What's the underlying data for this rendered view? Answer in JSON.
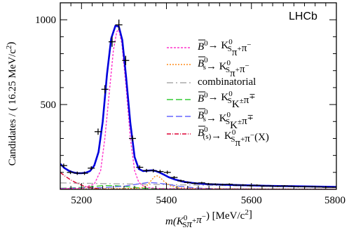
{
  "chart_data": {
    "type": "line",
    "experiment_label": "LHCb",
    "xlabel_parts": [
      "m(K",
      "0",
      "S",
      "π",
      "+",
      "π",
      "−",
      ") [MeV/c",
      "2",
      "]"
    ],
    "ylabel_parts": [
      "Candidates / ( 16.25 MeV/c",
      "2",
      ")"
    ],
    "xlim": [
      5150,
      5800
    ],
    "ylim": [
      0,
      1100
    ],
    "x_ticks": [
      5200,
      5400,
      5600,
      5800
    ],
    "x_tick_labels": [
      "5200",
      "5400",
      "5600",
      "5800"
    ],
    "y_ticks": [
      500,
      1000
    ],
    "y_tick_labels": [
      "500",
      "1000"
    ],
    "legend": [
      {
        "id": "b0_kspipi",
        "color": "#ff33cc",
        "dash": "3,2",
        "text_parts": [
          "B",
          "0",
          "→ K",
          "0",
          "S",
          "π",
          "+",
          "π",
          "−"
        ]
      },
      {
        "id": "bs_kspipi",
        "color": "#ff8c1a",
        "dash": "2,2",
        "text_parts": [
          "B",
          "0",
          "s",
          "→ K",
          "0",
          "S",
          "π",
          "+",
          "π",
          "−"
        ]
      },
      {
        "id": "combinatorial",
        "color": "#aaaaaa",
        "dash": "9,4,2,4",
        "text_parts": [
          "combinatorial"
        ]
      },
      {
        "id": "b0_kskpi",
        "color": "#33cc33",
        "dash": "9,4",
        "text_parts": [
          "B",
          "0",
          "→ K",
          "0",
          "S",
          "K",
          "±",
          "π",
          "∓"
        ]
      },
      {
        "id": "bs_kskpi",
        "color": "#6666ff",
        "dash": "9,4",
        "text_parts": [
          "B",
          "0",
          "s",
          "→ K",
          "0",
          "S",
          "K",
          "±",
          "π",
          "∓"
        ]
      },
      {
        "id": "partreco",
        "color": "#dd0033",
        "dash": "6,2,1,2",
        "text_parts": [
          "B",
          "0",
          "(s)",
          "→ K",
          "0",
          "S",
          "π",
          "+",
          "π",
          "−",
          "(X)"
        ]
      }
    ],
    "series": [
      {
        "id": "data",
        "kind": "points",
        "color": "#000000",
        "x": [
          5158,
          5174,
          5190,
          5207,
          5223,
          5239,
          5255,
          5272,
          5288,
          5304,
          5320,
          5337,
          5353,
          5369,
          5385,
          5402,
          5418,
          5434,
          5450,
          5467,
          5483,
          5499,
          5515,
          5532,
          5548,
          5564,
          5580,
          5597,
          5613,
          5629,
          5645,
          5662,
          5678,
          5694,
          5710,
          5727,
          5743,
          5759,
          5775,
          5792
        ],
        "y": [
          140,
          100,
          95,
          95,
          125,
          340,
          590,
          870,
          970,
          760,
          300,
          130,
          110,
          110,
          105,
          100,
          70,
          50,
          40,
          35,
          38,
          32,
          30,
          28,
          30,
          25,
          25,
          22,
          24,
          20,
          20,
          18,
          20,
          18,
          15,
          15,
          15,
          14,
          12,
          12
        ]
      },
      {
        "id": "total",
        "kind": "line",
        "color": "#0000dd",
        "x": [
          5150,
          5160,
          5170,
          5180,
          5190,
          5200,
          5210,
          5220,
          5230,
          5240,
          5250,
          5260,
          5270,
          5280,
          5288,
          5296,
          5305,
          5315,
          5325,
          5335,
          5345,
          5355,
          5365,
          5375,
          5385,
          5395,
          5405,
          5420,
          5440,
          5460,
          5480,
          5500,
          5550,
          5600,
          5650,
          5700,
          5750,
          5800
        ],
        "y": [
          150,
          125,
          110,
          100,
          95,
          95,
          98,
          108,
          140,
          220,
          400,
          680,
          890,
          965,
          960,
          880,
          660,
          390,
          190,
          120,
          108,
          110,
          112,
          108,
          98,
          85,
          72,
          58,
          45,
          38,
          33,
          30,
          26,
          23,
          20,
          18,
          16,
          14
        ]
      },
      {
        "id": "b0_kspipi",
        "kind": "line",
        "color": "#ff33cc",
        "dash": "3,2",
        "x": [
          5150,
          5200,
          5230,
          5245,
          5255,
          5265,
          5275,
          5283,
          5288,
          5295,
          5305,
          5315,
          5325,
          5335,
          5350,
          5380,
          5450,
          5550,
          5700,
          5800
        ],
        "y": [
          4,
          6,
          30,
          110,
          300,
          560,
          820,
          930,
          940,
          860,
          600,
          300,
          110,
          40,
          12,
          5,
          3,
          2,
          1,
          1
        ]
      },
      {
        "id": "bs_kspipi",
        "kind": "line",
        "color": "#ff8c1a",
        "dash": "2,2",
        "x": [
          5150,
          5300,
          5340,
          5355,
          5365,
          5372,
          5378,
          5385,
          5395,
          5410,
          5430,
          5480,
          5600,
          5800
        ],
        "y": [
          2,
          4,
          8,
          25,
          55,
          75,
          80,
          70,
          45,
          20,
          8,
          4,
          2,
          1
        ]
      },
      {
        "id": "combinatorial",
        "kind": "line",
        "color": "#aaaaaa",
        "dash": "9,4,2,4",
        "x": [
          5150,
          5250,
          5350,
          5450,
          5550,
          5650,
          5800
        ],
        "y": [
          38,
          34,
          30,
          26,
          22,
          19,
          15
        ]
      },
      {
        "id": "b0_kskpi",
        "kind": "line",
        "color": "#33cc33",
        "dash": "9,4",
        "x": [
          5150,
          5190,
          5220,
          5250,
          5280,
          5310,
          5340,
          5370,
          5400,
          5450
        ],
        "y": [
          6,
          10,
          15,
          22,
          22,
          15,
          8,
          4,
          2,
          1
        ]
      },
      {
        "id": "bs_kskpi",
        "kind": "line",
        "color": "#6666ff",
        "dash": "9,4",
        "x": [
          5150,
          5250,
          5300,
          5330,
          5355,
          5375,
          5400,
          5430,
          5470,
          5520,
          5600
        ],
        "y": [
          5,
          10,
          18,
          30,
          40,
          38,
          30,
          18,
          8,
          3,
          1
        ]
      },
      {
        "id": "partreco",
        "kind": "line",
        "color": "#dd0033",
        "dash": "6,2,1,2",
        "x": [
          5150,
          5160,
          5175,
          5190,
          5205,
          5220,
          5240,
          5260,
          5290
        ],
        "y": [
          100,
          80,
          55,
          35,
          20,
          10,
          4,
          1,
          0
        ]
      }
    ]
  }
}
